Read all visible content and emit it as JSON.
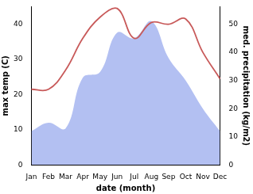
{
  "chart_data": {
    "type": "line",
    "x_label": "date (month)",
    "y_label": "max temp (C)",
    "y2_label": "med. precipitation (kg/m2)",
    "categories": [
      "Jan",
      "Feb",
      "Mar",
      "Apr",
      "May",
      "Jun",
      "Jul",
      "Aug",
      "Sep",
      "Oct",
      "Nov",
      "Dec"
    ],
    "series": [
      {
        "name": "max temp",
        "type": "line",
        "color": "#c85a5a",
        "axis": "y",
        "values": [
          21.5,
          21.5,
          27,
          36,
          42,
          44.5,
          36,
          40.5,
          40,
          41.5,
          32,
          24.5
        ]
      },
      {
        "name": "med. precipitation",
        "type": "area",
        "color": "#b3c0f2",
        "axis": "y2",
        "values": [
          12,
          15,
          13,
          31,
          33,
          47,
          45,
          51,
          38,
          30,
          20,
          12
        ]
      }
    ],
    "ylim": [
      0,
      45
    ],
    "yticks": [
      0,
      10,
      20,
      30,
      40
    ],
    "y2lim": [
      0,
      56.25
    ],
    "y2ticks": [
      0,
      10,
      20,
      30,
      40,
      50
    ],
    "grid": false
  }
}
